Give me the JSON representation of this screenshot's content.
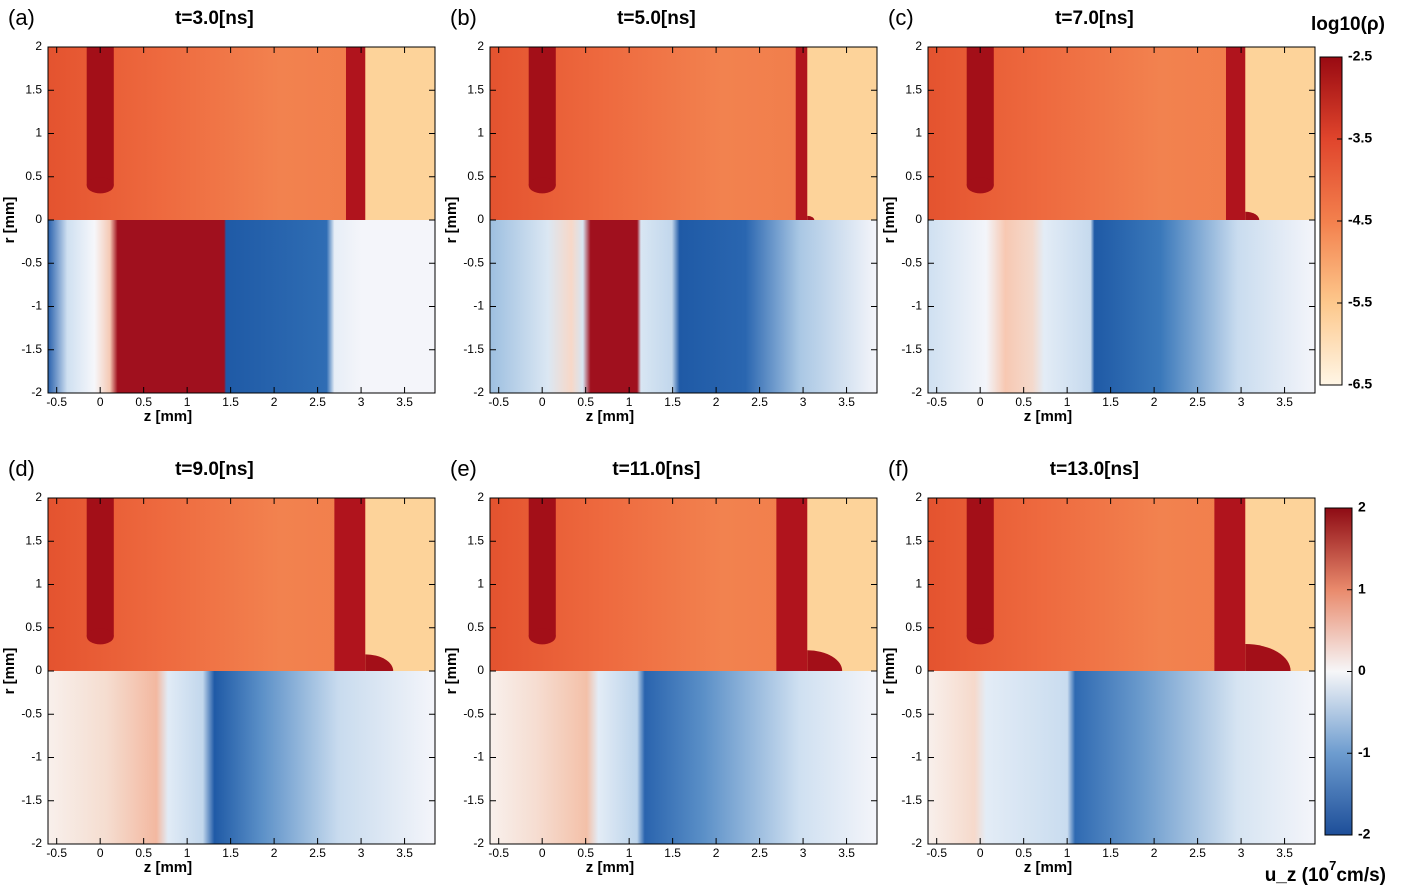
{
  "chart_data": [
    {
      "type": "heatmap",
      "panel": "(a)",
      "title": "t=3.0[ns]",
      "x_label": "z [mm]",
      "y_label": "r [mm]",
      "xlim": [
        -0.6,
        3.85
      ],
      "ylim": [
        -2,
        2
      ],
      "xticks": [
        -0.5,
        0,
        0.5,
        1,
        1.5,
        2,
        2.5,
        3,
        3.5
      ],
      "yticks": [
        -2,
        -1.5,
        -1,
        -0.5,
        0,
        0.5,
        1,
        1.5,
        2
      ]
    },
    {
      "type": "heatmap",
      "panel": "(b)",
      "title": "t=5.0[ns]",
      "x_label": "z [mm]",
      "y_label": "r [mm]",
      "xlim": [
        -0.6,
        3.85
      ],
      "ylim": [
        -2,
        2
      ],
      "xticks": [
        -0.5,
        0,
        0.5,
        1,
        1.5,
        2,
        2.5,
        3,
        3.5
      ],
      "yticks": [
        -2,
        -1.5,
        -1,
        -0.5,
        0,
        0.5,
        1,
        1.5,
        2
      ]
    },
    {
      "type": "heatmap",
      "panel": "(c)",
      "title": "t=7.0[ns]",
      "x_label": "z [mm]",
      "y_label": "r [mm]",
      "xlim": [
        -0.6,
        3.85
      ],
      "ylim": [
        -2,
        2
      ],
      "xticks": [
        -0.5,
        0,
        0.5,
        1,
        1.5,
        2,
        2.5,
        3,
        3.5
      ],
      "yticks": [
        -2,
        -1.5,
        -1,
        -0.5,
        0,
        0.5,
        1,
        1.5,
        2
      ]
    },
    {
      "type": "heatmap",
      "panel": "(d)",
      "title": "t=9.0[ns]",
      "x_label": "z [mm]",
      "y_label": "r [mm]",
      "xlim": [
        -0.6,
        3.85
      ],
      "ylim": [
        -2,
        2
      ],
      "xticks": [
        -0.5,
        0,
        0.5,
        1,
        1.5,
        2,
        2.5,
        3,
        3.5
      ],
      "yticks": [
        -2,
        -1.5,
        -1,
        -0.5,
        0,
        0.5,
        1,
        1.5,
        2
      ]
    },
    {
      "type": "heatmap",
      "panel": "(e)",
      "title": "t=11.0[ns]",
      "x_label": "z [mm]",
      "y_label": "r [mm]",
      "xlim": [
        -0.6,
        3.85
      ],
      "ylim": [
        -2,
        2
      ],
      "xticks": [
        -0.5,
        0,
        0.5,
        1,
        1.5,
        2,
        2.5,
        3,
        3.5
      ],
      "yticks": [
        -2,
        -1.5,
        -1,
        -0.5,
        0,
        0.5,
        1,
        1.5,
        2
      ]
    },
    {
      "type": "heatmap",
      "panel": "(f)",
      "title": "t=13.0[ns]",
      "x_label": "z [mm]",
      "y_label": "r [mm]",
      "xlim": [
        -0.6,
        3.85
      ],
      "ylim": [
        -2,
        2
      ],
      "xticks": [
        -0.5,
        0,
        0.5,
        1,
        1.5,
        2,
        2.5,
        3,
        3.5
      ],
      "yticks": [
        -2,
        -1.5,
        -1,
        -0.5,
        0,
        0.5,
        1,
        1.5,
        2
      ]
    },
    {
      "type": "colorbar",
      "title": "log10(ρ)",
      "ylim": [
        -6.5,
        -2.5
      ],
      "yticks": [
        -2.5,
        -3.5,
        -4.5,
        -5.5,
        -6.5
      ]
    },
    {
      "type": "colorbar",
      "title": "u_z (10",
      "title_exponent": "7",
      "title_unit": "cm/s)",
      "ylim": [
        -2,
        2
      ],
      "yticks": [
        2,
        1,
        0,
        -1,
        -2
      ]
    }
  ]
}
